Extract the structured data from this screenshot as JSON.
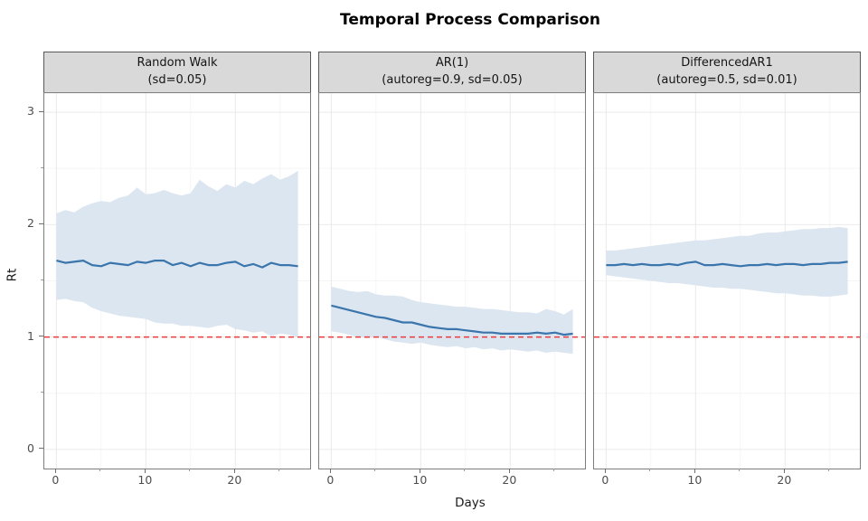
{
  "title": "Temporal Process Comparison",
  "xlabel": "Days",
  "ylabel": "Rt",
  "colors": {
    "mean_line": "#3a75ac",
    "ribbon": "#dce6f1",
    "reference_line": "#ee3a3a",
    "strip_bg": "#d9d9d9",
    "grid_major": "#ebebeb",
    "grid_minor": "#f5f5f5"
  },
  "chart_data": {
    "type": "line",
    "title": "Temporal Process Comparison",
    "xlabel": "Days",
    "ylabel": "Rt",
    "x": [
      0,
      1,
      2,
      3,
      4,
      5,
      6,
      7,
      8,
      9,
      10,
      11,
      12,
      13,
      14,
      15,
      16,
      17,
      18,
      19,
      20,
      21,
      22,
      23,
      24,
      25,
      26,
      27
    ],
    "x_ticks": [
      0,
      10,
      20
    ],
    "x_minor_ticks": [
      5,
      15,
      25
    ],
    "y_ticks": [
      0,
      1,
      2,
      3
    ],
    "y_minor_ticks": [
      0.5,
      1.5,
      2.5
    ],
    "xlim": [
      -1.35,
      28.35
    ],
    "ylim": [
      -0.17,
      3.17
    ],
    "reference_hline": 1.0,
    "grid": "on",
    "legend": "none",
    "panels": [
      {
        "facet_title": "Random Walk",
        "facet_subtitle": "(sd=0.05)",
        "series": "Rt mean with credible band",
        "mean": [
          1.68,
          1.66,
          1.67,
          1.68,
          1.64,
          1.63,
          1.66,
          1.65,
          1.64,
          1.67,
          1.66,
          1.68,
          1.68,
          1.64,
          1.66,
          1.63,
          1.66,
          1.64,
          1.64,
          1.66,
          1.67,
          1.63,
          1.65,
          1.62,
          1.66,
          1.64,
          1.64,
          1.63
        ],
        "upper": [
          2.1,
          2.13,
          2.11,
          2.16,
          2.19,
          2.21,
          2.2,
          2.24,
          2.26,
          2.33,
          2.27,
          2.28,
          2.31,
          2.28,
          2.26,
          2.28,
          2.4,
          2.34,
          2.3,
          2.36,
          2.33,
          2.39,
          2.36,
          2.41,
          2.45,
          2.4,
          2.43,
          2.48
        ],
        "lower": [
          1.33,
          1.34,
          1.32,
          1.31,
          1.26,
          1.23,
          1.21,
          1.19,
          1.18,
          1.17,
          1.16,
          1.13,
          1.12,
          1.12,
          1.1,
          1.1,
          1.09,
          1.08,
          1.1,
          1.11,
          1.07,
          1.06,
          1.04,
          1.05,
          1.01,
          1.03,
          1.02,
          1.0
        ]
      },
      {
        "facet_title": "AR(1)",
        "facet_subtitle": "(autoreg=0.9, sd=0.05)",
        "series": "Rt mean with credible band",
        "mean": [
          1.28,
          1.26,
          1.24,
          1.22,
          1.2,
          1.18,
          1.17,
          1.15,
          1.13,
          1.13,
          1.11,
          1.09,
          1.08,
          1.07,
          1.07,
          1.06,
          1.05,
          1.04,
          1.04,
          1.03,
          1.03,
          1.03,
          1.03,
          1.04,
          1.03,
          1.04,
          1.02,
          1.03
        ],
        "upper": [
          1.45,
          1.43,
          1.41,
          1.4,
          1.41,
          1.38,
          1.37,
          1.37,
          1.36,
          1.33,
          1.31,
          1.3,
          1.29,
          1.28,
          1.27,
          1.27,
          1.26,
          1.25,
          1.25,
          1.24,
          1.23,
          1.22,
          1.22,
          1.21,
          1.25,
          1.23,
          1.2,
          1.25
        ],
        "lower": [
          1.05,
          1.04,
          1.02,
          1.0,
          0.99,
          1.0,
          0.98,
          0.96,
          0.95,
          0.94,
          0.95,
          0.93,
          0.92,
          0.91,
          0.92,
          0.9,
          0.91,
          0.89,
          0.9,
          0.88,
          0.89,
          0.88,
          0.87,
          0.88,
          0.86,
          0.87,
          0.86,
          0.85
        ]
      },
      {
        "facet_title": "DifferencedAR1",
        "facet_subtitle": "(autoreg=0.5, sd=0.01)",
        "series": "Rt mean with credible band",
        "mean": [
          1.64,
          1.64,
          1.65,
          1.64,
          1.65,
          1.64,
          1.64,
          1.65,
          1.64,
          1.66,
          1.67,
          1.64,
          1.64,
          1.65,
          1.64,
          1.63,
          1.64,
          1.64,
          1.65,
          1.64,
          1.65,
          1.65,
          1.64,
          1.65,
          1.65,
          1.66,
          1.66,
          1.67
        ],
        "upper": [
          1.77,
          1.77,
          1.78,
          1.79,
          1.8,
          1.81,
          1.82,
          1.83,
          1.84,
          1.85,
          1.86,
          1.86,
          1.87,
          1.88,
          1.89,
          1.9,
          1.9,
          1.92,
          1.93,
          1.93,
          1.94,
          1.95,
          1.96,
          1.96,
          1.97,
          1.97,
          1.98,
          1.97
        ],
        "lower": [
          1.55,
          1.54,
          1.53,
          1.52,
          1.51,
          1.5,
          1.49,
          1.48,
          1.48,
          1.47,
          1.46,
          1.45,
          1.44,
          1.44,
          1.43,
          1.43,
          1.42,
          1.41,
          1.4,
          1.39,
          1.39,
          1.38,
          1.37,
          1.37,
          1.36,
          1.36,
          1.37,
          1.38
        ]
      }
    ]
  }
}
